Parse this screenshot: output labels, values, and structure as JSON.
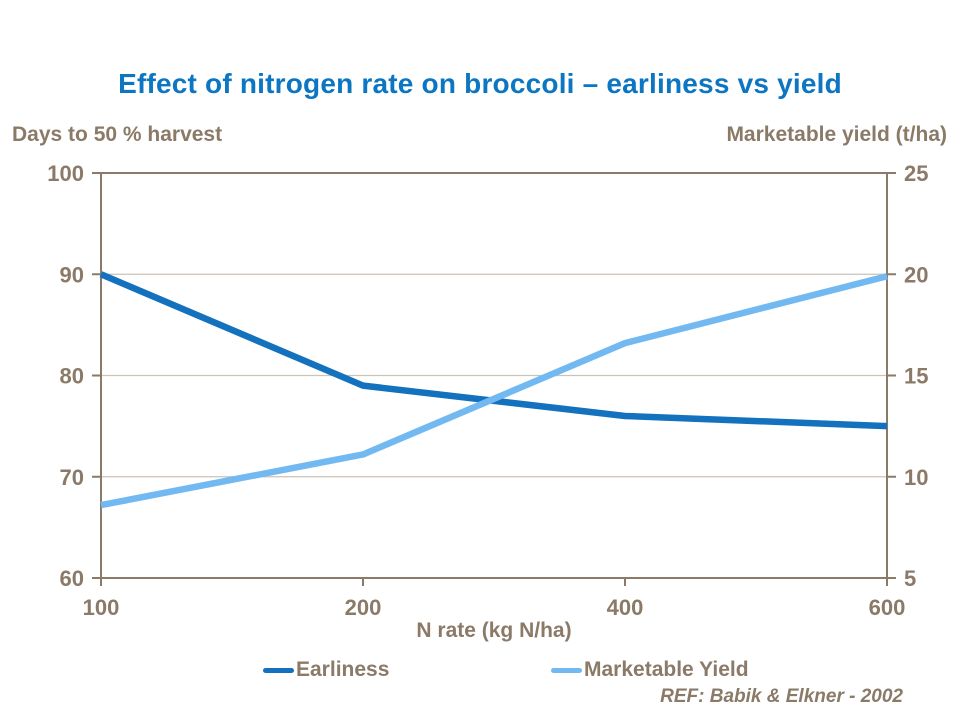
{
  "chart_data": {
    "type": "line",
    "title": "Effect of nitrogen rate on broccoli – earliness vs yield",
    "x_label": "N rate (kg N/ha)",
    "x_categories": [
      100,
      200,
      400,
      600
    ],
    "left_axis": {
      "title": "Days to 50 % harvest",
      "ticks": [
        100,
        90,
        80,
        70,
        60
      ],
      "range": [
        60,
        100
      ]
    },
    "right_axis": {
      "title": "Marketable yield (t/ha)",
      "ticks": [
        25,
        20,
        15,
        10,
        5
      ],
      "range": [
        5,
        25
      ]
    },
    "series": [
      {
        "name": "Earliness",
        "axis": "left",
        "color": "#1471BD",
        "values": [
          90,
          79,
          76,
          75
        ]
      },
      {
        "name": "Marketable Yield",
        "axis": "right",
        "color": "#72B9F2",
        "values": [
          8.6,
          11.1,
          16.6,
          19.9
        ]
      }
    ],
    "grid": true,
    "legend_position": "bottom",
    "ref": "REF: Babik & Elkner - 2002",
    "colors": {
      "title": "#0C76C2",
      "text": "#8A7A67",
      "axis": "#8A7A67",
      "gridline": "#CBC3B6"
    }
  }
}
